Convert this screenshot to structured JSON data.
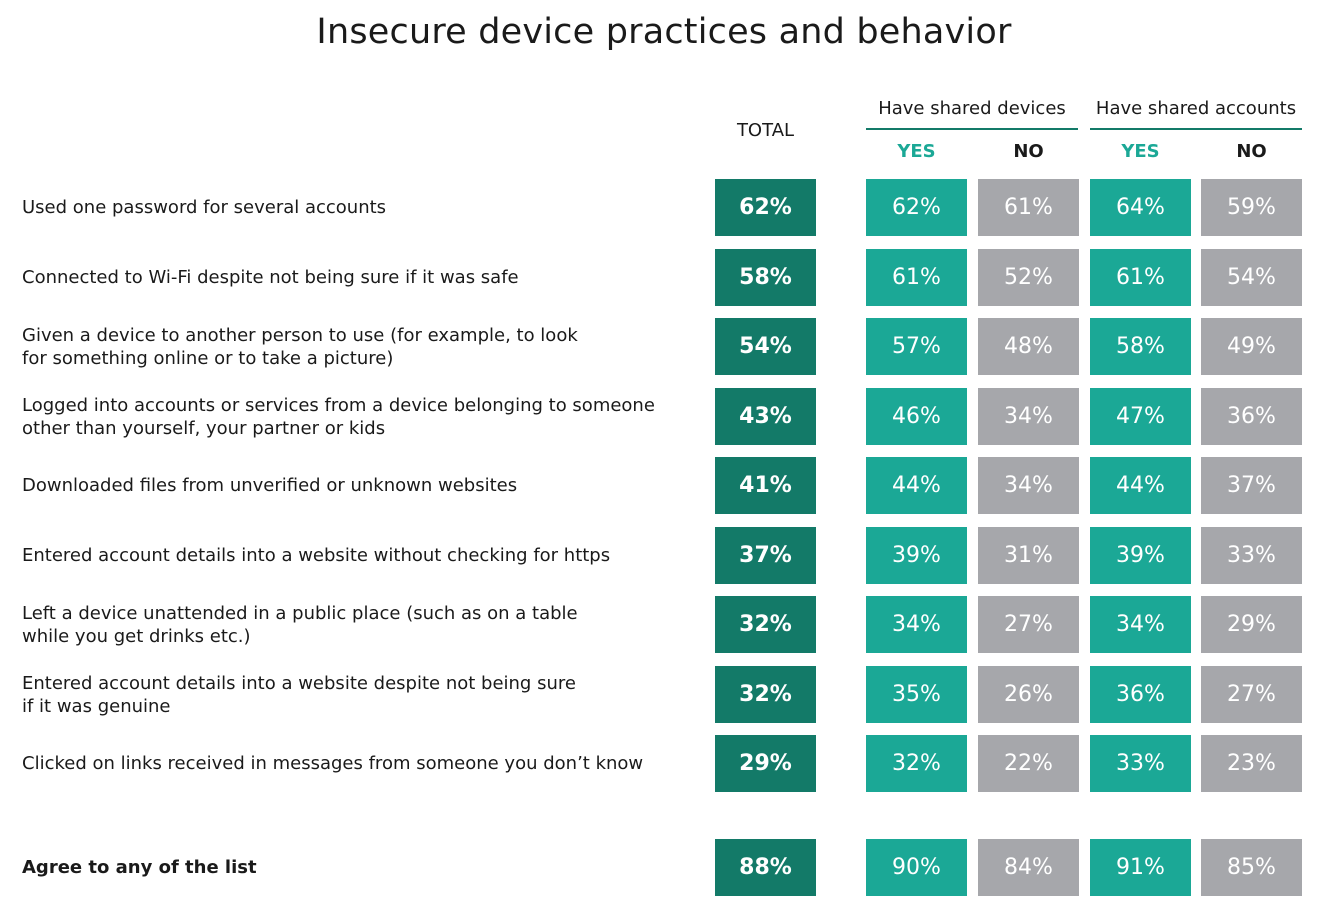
{
  "chart_data": {
    "type": "table",
    "title": "Insecure device practices and behavior",
    "columns": {
      "total": "TOTAL",
      "groups": [
        {
          "name": "Have shared devices",
          "yes": "YES",
          "no": "NO"
        },
        {
          "name": "Have shared accounts",
          "yes": "YES",
          "no": "NO"
        }
      ]
    },
    "rows": [
      {
        "label": "Used one password for several accounts",
        "values": [
          "62%",
          "62%",
          "61%",
          "64%",
          "59%"
        ]
      },
      {
        "label": "Connected to Wi-Fi despite not being sure if it was safe",
        "values": [
          "58%",
          "61%",
          "52%",
          "61%",
          "54%"
        ]
      },
      {
        "label": "Given a device to another person to use (for example, to look\nfor something online or to take a picture)",
        "values": [
          "54%",
          "57%",
          "48%",
          "58%",
          "49%"
        ]
      },
      {
        "label": "Logged into accounts or services from a device belonging to someone\nother than yourself, your partner or kids",
        "values": [
          "43%",
          "46%",
          "34%",
          "47%",
          "36%"
        ]
      },
      {
        "label": "Downloaded files from unverified or unknown websites",
        "values": [
          "41%",
          "44%",
          "34%",
          "44%",
          "37%"
        ]
      },
      {
        "label": "Entered account details into a website without checking for https",
        "values": [
          "37%",
          "39%",
          "31%",
          "39%",
          "33%"
        ]
      },
      {
        "label": "Left a device unattended in a public place (such as on a table\nwhile you get drinks etc.)",
        "values": [
          "32%",
          "34%",
          "27%",
          "34%",
          "29%"
        ]
      },
      {
        "label": "Entered account details into a website despite not being sure\nif it was genuine",
        "values": [
          "32%",
          "35%",
          "26%",
          "36%",
          "27%"
        ]
      },
      {
        "label": "Clicked on links received in messages from someone you don’t know",
        "values": [
          "29%",
          "32%",
          "22%",
          "33%",
          "23%"
        ]
      }
    ],
    "summary_row": {
      "label": "Agree to any of the list",
      "values": [
        "88%",
        "90%",
        "84%",
        "91%",
        "85%"
      ]
    }
  },
  "colors": {
    "total": "#137a68",
    "yes": "#1ba896",
    "no": "#a6a7ab",
    "yes_label": "#1ba896",
    "group_line": "#137a68"
  }
}
